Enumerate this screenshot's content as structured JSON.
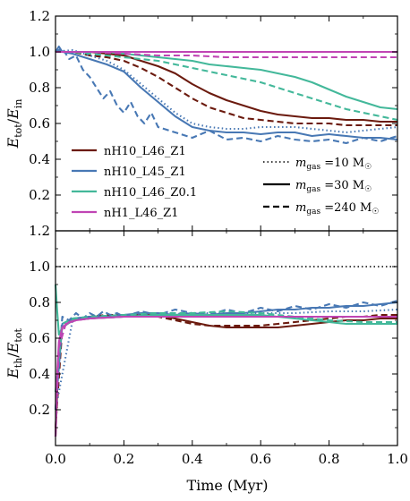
{
  "chart_data": {
    "type": "line",
    "shared_x_label": "Time (Myr)",
    "x_ticks": [
      "0.0",
      "0.2",
      "0.4",
      "0.6",
      "0.8",
      "1.0"
    ],
    "xlim": [
      0,
      1
    ],
    "panels": [
      {
        "ylabel": "E_tot/E_in",
        "ylim": [
          0,
          1.2
        ],
        "y_ticks": [
          "0.2",
          "0.4",
          "0.6",
          "0.8",
          "1.0",
          "1.2"
        ],
        "reference_line": 1.0,
        "legend_runs": [
          {
            "label": "nH10_L46_Z1",
            "color": "#6b1a0e"
          },
          {
            "label": "nH10_L45_Z1",
            "color": "#4878b4"
          },
          {
            "label": "nH10_L46_Z0.1",
            "color": "#43b89a"
          },
          {
            "label": "nH1_L46_Z1",
            "color": "#c045b4"
          }
        ],
        "legend_resolution": [
          {
            "style": "dotted",
            "label": "m_gas = 10 M☉"
          },
          {
            "style": "solid",
            "label": "m_gas = 30 M☉"
          },
          {
            "style": "dashed",
            "label": "m_gas = 240 M☉"
          }
        ],
        "series": [
          {
            "run": "nH10_L46_Z1",
            "style": "solid",
            "x": [
              0,
              0.05,
              0.1,
              0.15,
              0.2,
              0.25,
              0.3,
              0.35,
              0.4,
              0.45,
              0.5,
              0.55,
              0.6,
              0.65,
              0.7,
              0.75,
              0.8,
              0.85,
              0.9,
              0.95,
              1.0
            ],
            "y": [
              1.0,
              1.0,
              1.0,
              0.99,
              0.98,
              0.95,
              0.92,
              0.88,
              0.82,
              0.77,
              0.73,
              0.7,
              0.67,
              0.65,
              0.64,
              0.63,
              0.63,
              0.62,
              0.62,
              0.61,
              0.61
            ]
          },
          {
            "run": "nH10_L46_Z1",
            "style": "dashed",
            "x": [
              0,
              0.05,
              0.1,
              0.15,
              0.2,
              0.25,
              0.3,
              0.35,
              0.4,
              0.45,
              0.5,
              0.55,
              0.6,
              0.65,
              0.7,
              0.75,
              0.8,
              0.85,
              0.9,
              0.95,
              1.0
            ],
            "y": [
              1.0,
              1.0,
              0.98,
              0.97,
              0.95,
              0.91,
              0.86,
              0.8,
              0.74,
              0.69,
              0.66,
              0.63,
              0.62,
              0.61,
              0.6,
              0.6,
              0.6,
              0.59,
              0.59,
              0.59,
              0.59
            ]
          },
          {
            "run": "nH10_L45_Z1",
            "style": "solid",
            "x": [
              0,
              0.01,
              0.02,
              0.05,
              0.1,
              0.15,
              0.2,
              0.25,
              0.3,
              0.35,
              0.4,
              0.45,
              0.5,
              0.55,
              0.6,
              0.65,
              0.7,
              0.75,
              0.8,
              0.85,
              0.9,
              0.95,
              1.0
            ],
            "y": [
              1.0,
              1.03,
              1.0,
              0.99,
              0.96,
              0.93,
              0.89,
              0.8,
              0.72,
              0.64,
              0.58,
              0.56,
              0.55,
              0.55,
              0.54,
              0.55,
              0.55,
              0.53,
              0.54,
              0.53,
              0.52,
              0.52,
              0.51
            ]
          },
          {
            "run": "nH10_L45_Z1",
            "style": "dashed",
            "x": [
              0,
              0.02,
              0.04,
              0.06,
              0.08,
              0.1,
              0.12,
              0.14,
              0.16,
              0.18,
              0.2,
              0.22,
              0.24,
              0.26,
              0.28,
              0.3,
              0.35,
              0.4,
              0.45,
              0.5,
              0.55,
              0.6,
              0.65,
              0.7,
              0.75,
              0.8,
              0.85,
              0.9,
              0.95,
              1.0
            ],
            "y": [
              1.0,
              1.02,
              0.96,
              0.98,
              0.9,
              0.86,
              0.8,
              0.74,
              0.78,
              0.7,
              0.66,
              0.72,
              0.64,
              0.6,
              0.66,
              0.58,
              0.55,
              0.52,
              0.56,
              0.51,
              0.52,
              0.5,
              0.53,
              0.51,
              0.5,
              0.51,
              0.49,
              0.52,
              0.5,
              0.53
            ]
          },
          {
            "run": "nH10_L45_Z1",
            "style": "dotted",
            "x": [
              0,
              0.05,
              0.1,
              0.15,
              0.2,
              0.25,
              0.3,
              0.35,
              0.4,
              0.45,
              0.5,
              0.55,
              0.6,
              0.65,
              0.7,
              0.75,
              0.8,
              0.85,
              0.9,
              0.95,
              1.0
            ],
            "y": [
              1.0,
              1.01,
              0.98,
              0.95,
              0.9,
              0.82,
              0.74,
              0.66,
              0.6,
              0.58,
              0.57,
              0.57,
              0.58,
              0.58,
              0.58,
              0.57,
              0.56,
              0.55,
              0.56,
              0.57,
              0.58
            ]
          },
          {
            "run": "nH10_L46_Z0.1",
            "style": "solid",
            "x": [
              0,
              0.05,
              0.1,
              0.15,
              0.2,
              0.25,
              0.3,
              0.35,
              0.4,
              0.45,
              0.5,
              0.55,
              0.6,
              0.65,
              0.7,
              0.75,
              0.8,
              0.85,
              0.9,
              0.95,
              1.0
            ],
            "y": [
              1.0,
              1.0,
              1.0,
              1.0,
              0.99,
              0.98,
              0.97,
              0.96,
              0.95,
              0.93,
              0.92,
              0.91,
              0.9,
              0.88,
              0.86,
              0.83,
              0.79,
              0.75,
              0.72,
              0.69,
              0.68
            ]
          },
          {
            "run": "nH10_L46_Z0.1",
            "style": "dashed",
            "x": [
              0,
              0.05,
              0.1,
              0.15,
              0.2,
              0.25,
              0.3,
              0.35,
              0.4,
              0.45,
              0.5,
              0.55,
              0.6,
              0.65,
              0.7,
              0.75,
              0.8,
              0.85,
              0.9,
              0.95,
              1.0
            ],
            "y": [
              1.0,
              1.0,
              0.99,
              0.98,
              0.97,
              0.96,
              0.95,
              0.93,
              0.91,
              0.89,
              0.87,
              0.85,
              0.83,
              0.8,
              0.77,
              0.74,
              0.71,
              0.68,
              0.66,
              0.64,
              0.62
            ]
          },
          {
            "run": "nH1_L46_Z1",
            "style": "solid",
            "x": [
              0,
              0.2,
              0.4,
              0.6,
              0.8,
              1.0
            ],
            "y": [
              1.0,
              1.0,
              1.0,
              1.0,
              1.0,
              1.0
            ]
          },
          {
            "run": "nH1_L46_Z1",
            "style": "dashed",
            "x": [
              0,
              0.1,
              0.2,
              0.3,
              0.4,
              0.5,
              0.6,
              0.7,
              0.8,
              0.9,
              1.0
            ],
            "y": [
              1.0,
              1.0,
              0.99,
              0.98,
              0.98,
              0.97,
              0.97,
              0.97,
              0.97,
              0.97,
              0.97
            ]
          }
        ]
      },
      {
        "ylabel": "E_th/E_tot",
        "ylim": [
          0,
          1.2
        ],
        "y_ticks": [
          "0.2",
          "0.4",
          "0.6",
          "0.8",
          "1.0",
          "1.2"
        ],
        "reference_line": 1.0,
        "series": [
          {
            "run": "nH10_L46_Z1",
            "style": "solid",
            "x": [
              0,
              0.01,
              0.02,
              0.05,
              0.1,
              0.15,
              0.2,
              0.25,
              0.3,
              0.35,
              0.4,
              0.45,
              0.5,
              0.55,
              0.6,
              0.65,
              0.7,
              0.75,
              0.8,
              0.85,
              0.9,
              0.95,
              1.0
            ],
            "y": [
              0.05,
              0.55,
              0.66,
              0.7,
              0.71,
              0.72,
              0.73,
              0.73,
              0.73,
              0.71,
              0.69,
              0.67,
              0.66,
              0.66,
              0.66,
              0.66,
              0.67,
              0.68,
              0.69,
              0.7,
              0.7,
              0.71,
              0.71
            ]
          },
          {
            "run": "nH10_L46_Z1",
            "style": "dashed",
            "x": [
              0,
              0.02,
              0.05,
              0.1,
              0.15,
              0.2,
              0.25,
              0.3,
              0.35,
              0.4,
              0.45,
              0.5,
              0.55,
              0.6,
              0.65,
              0.7,
              0.75,
              0.8,
              0.85,
              0.9,
              0.95,
              1.0
            ],
            "y": [
              0.1,
              0.66,
              0.7,
              0.72,
              0.73,
              0.73,
              0.73,
              0.72,
              0.7,
              0.68,
              0.67,
              0.67,
              0.67,
              0.67,
              0.68,
              0.69,
              0.7,
              0.71,
              0.72,
              0.72,
              0.73,
              0.73
            ]
          },
          {
            "run": "nH10_L45_Z1",
            "style": "solid",
            "x": [
              0,
              0.02,
              0.05,
              0.1,
              0.15,
              0.2,
              0.25,
              0.3,
              0.35,
              0.4,
              0.45,
              0.5,
              0.55,
              0.6,
              0.65,
              0.7,
              0.75,
              0.8,
              0.85,
              0.9,
              0.95,
              1.0
            ],
            "y": [
              0.2,
              0.68,
              0.71,
              0.72,
              0.72,
              0.73,
              0.74,
              0.74,
              0.73,
              0.74,
              0.73,
              0.74,
              0.74,
              0.75,
              0.76,
              0.76,
              0.77,
              0.77,
              0.78,
              0.78,
              0.79,
              0.8
            ]
          },
          {
            "run": "nH10_L45_Z1",
            "style": "dashed",
            "x": [
              0,
              0.02,
              0.04,
              0.06,
              0.08,
              0.1,
              0.12,
              0.14,
              0.16,
              0.18,
              0.2,
              0.25,
              0.3,
              0.35,
              0.4,
              0.45,
              0.5,
              0.55,
              0.6,
              0.65,
              0.7,
              0.75,
              0.8,
              0.85,
              0.9,
              0.95,
              1.0
            ],
            "y": [
              0.2,
              0.72,
              0.7,
              0.74,
              0.71,
              0.74,
              0.72,
              0.75,
              0.73,
              0.74,
              0.72,
              0.75,
              0.73,
              0.76,
              0.74,
              0.73,
              0.76,
              0.74,
              0.77,
              0.75,
              0.78,
              0.76,
              0.79,
              0.77,
              0.8,
              0.78,
              0.81
            ]
          },
          {
            "run": "nH10_L45_Z1",
            "style": "dotted",
            "x": [
              0,
              0.05,
              0.1,
              0.2,
              0.3,
              0.4,
              0.5,
              0.6,
              0.7,
              0.8,
              0.9,
              1.0
            ],
            "y": [
              0.2,
              0.7,
              0.72,
              0.73,
              0.73,
              0.74,
              0.74,
              0.74,
              0.74,
              0.75,
              0.75,
              0.76
            ]
          },
          {
            "run": "nH10_L46_Z0.1",
            "style": "solid",
            "x": [
              0,
              0.005,
              0.01,
              0.02,
              0.05,
              0.1,
              0.2,
              0.3,
              0.4,
              0.45,
              0.5,
              0.55,
              0.6,
              0.65,
              0.7,
              0.75,
              0.8,
              0.85,
              0.9,
              0.95,
              1.0
            ],
            "y": [
              0.9,
              0.75,
              0.62,
              0.66,
              0.7,
              0.71,
              0.72,
              0.73,
              0.73,
              0.73,
              0.73,
              0.73,
              0.73,
              0.72,
              0.71,
              0.7,
              0.69,
              0.68,
              0.68,
              0.68,
              0.68
            ]
          },
          {
            "run": "nH10_L46_Z0.1",
            "style": "dashed",
            "x": [
              0,
              0.02,
              0.05,
              0.1,
              0.2,
              0.3,
              0.4,
              0.5,
              0.6,
              0.7,
              0.8,
              0.9,
              1.0
            ],
            "y": [
              0.3,
              0.68,
              0.71,
              0.72,
              0.73,
              0.74,
              0.74,
              0.75,
              0.74,
              0.72,
              0.7,
              0.69,
              0.69
            ]
          },
          {
            "run": "nH1_L46_Z1",
            "style": "solid",
            "x": [
              0,
              0.005,
              0.01,
              0.02,
              0.04,
              0.06,
              0.1,
              0.2,
              0.3,
              0.4,
              0.5,
              0.6,
              0.7,
              0.8,
              0.9,
              1.0
            ],
            "y": [
              0.05,
              0.4,
              0.58,
              0.66,
              0.69,
              0.7,
              0.71,
              0.72,
              0.72,
              0.72,
              0.72,
              0.72,
              0.72,
              0.72,
              0.72,
              0.72
            ]
          },
          {
            "run": "nH1_L46_Z1",
            "style": "dashed",
            "x": [
              0,
              0.01,
              0.03,
              0.06,
              0.1,
              0.2,
              0.4,
              0.6,
              0.8,
              1.0
            ],
            "y": [
              0.05,
              0.55,
              0.68,
              0.7,
              0.71,
              0.72,
              0.72,
              0.72,
              0.72,
              0.72
            ]
          }
        ]
      }
    ]
  }
}
